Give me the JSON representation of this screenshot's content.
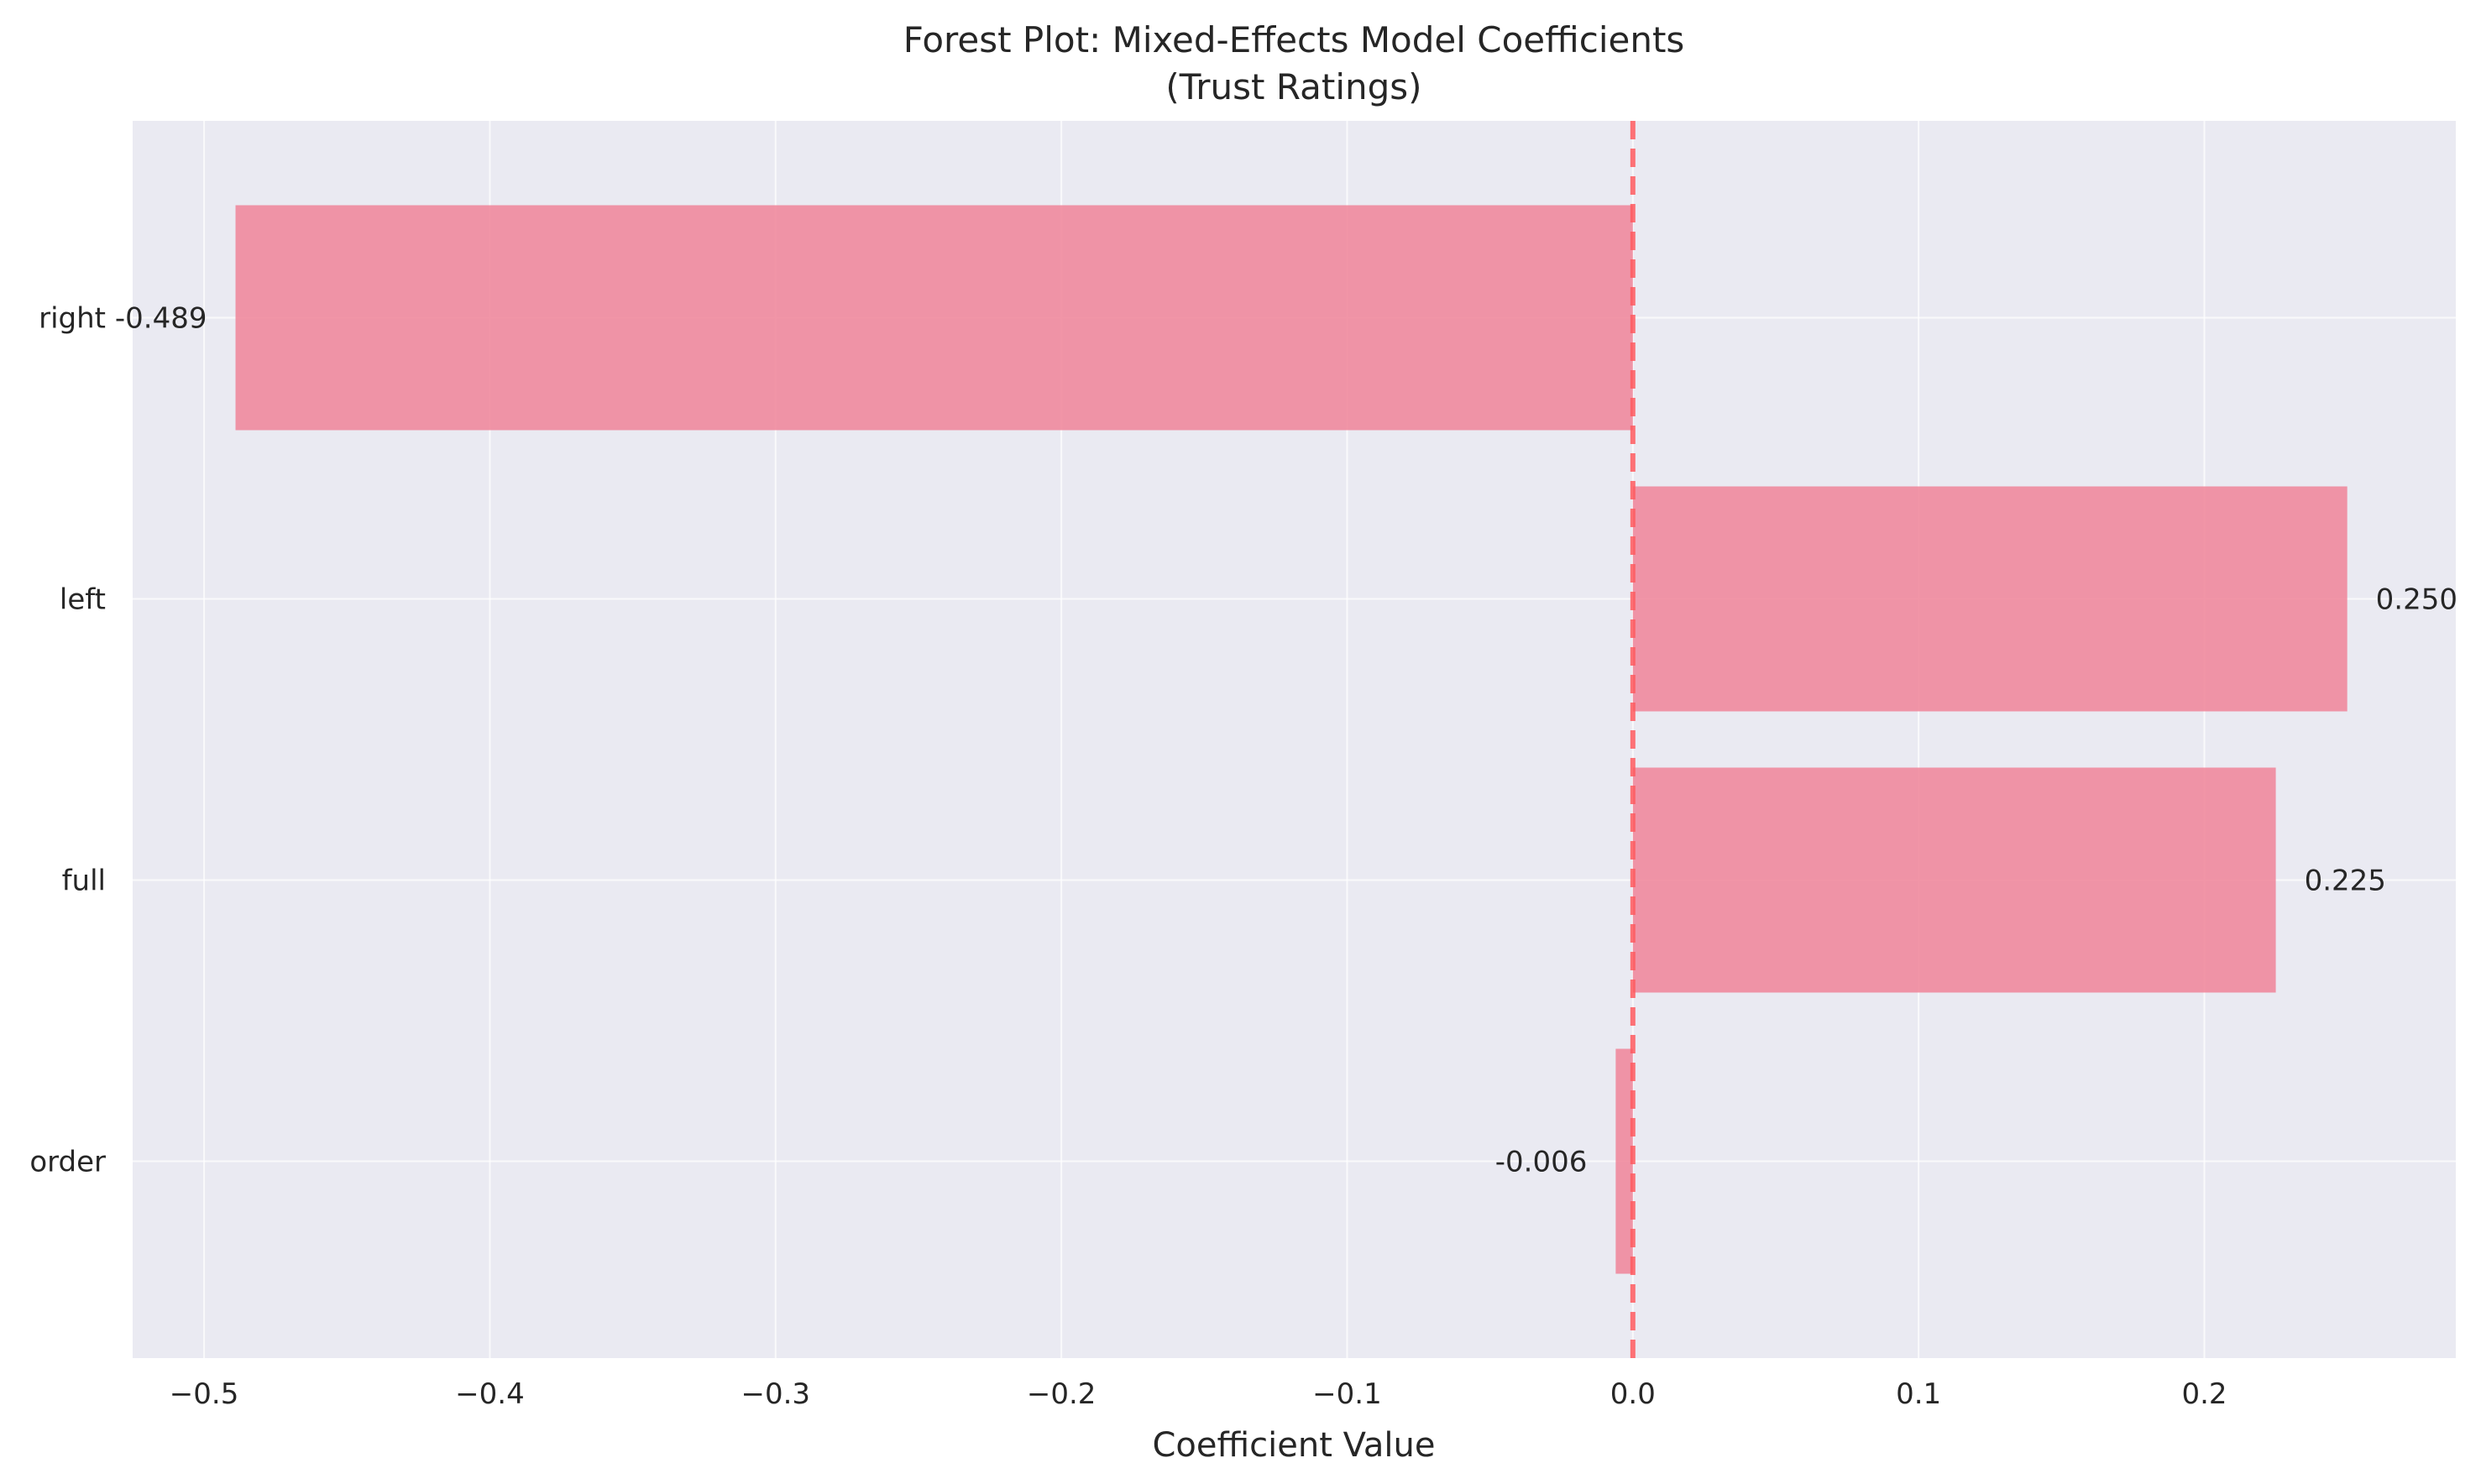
{
  "chart_data": {
    "type": "bar",
    "orientation": "horizontal",
    "title": "Forest Plot: Mixed-Effects Model Coefficients",
    "subtitle": "(Trust Ratings)",
    "xlabel": "Coefficient Value",
    "ylabel": "",
    "categories": [
      "right",
      "left",
      "full",
      "order"
    ],
    "values": [
      -0.489,
      0.25,
      0.225,
      -0.006
    ],
    "data_labels": [
      "-0.489",
      "0.250",
      "0.225",
      "-0.006"
    ],
    "xlim": [
      -0.525,
      0.288
    ],
    "xticks": [
      -0.5,
      -0.4,
      -0.3,
      -0.2,
      -0.1,
      0.0,
      0.1,
      0.2
    ],
    "xtick_labels": [
      "−0.5",
      "−0.4",
      "−0.3",
      "−0.2",
      "−0.1",
      "0.0",
      "0.1",
      "0.2"
    ],
    "reference_line": 0.0,
    "grid": true,
    "legend": "none",
    "colors": {
      "bar": "#f08a9d",
      "reference_line": "#ff5a5f",
      "plot_background": "#eaeaf2",
      "grid": "#ffffff",
      "text": "#262626"
    }
  }
}
